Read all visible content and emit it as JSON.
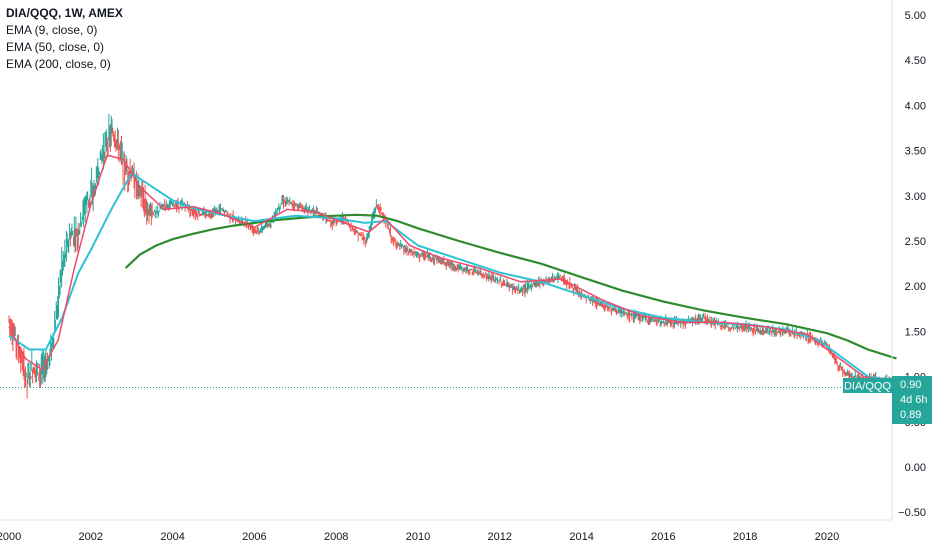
{
  "legend": {
    "title": "DIA/QQQ, 1W, AMEX",
    "ema_short": "EMA (9, close, 0)",
    "ema_mid": "EMA (50, close, 0)",
    "ema_long": "EMA (200, close, 0)"
  },
  "price_flag": {
    "symbol": "DIA/QQQ",
    "last": "0.90",
    "countdown": "4d 6h",
    "low": "0.89"
  },
  "colors": {
    "up": "#26a69a",
    "down": "#ef5350",
    "ema_short": "#ef4a6a",
    "ema_mid": "#2cc3d4",
    "ema_long": "#2e8b2e",
    "flag_bg": "#26a69a",
    "dotted_line": "#26a69a"
  },
  "chart_data": {
    "type": "line",
    "title": "DIA/QQQ, 1W, AMEX",
    "xlabel": "",
    "ylabel": "",
    "x_ticks": [
      "2000",
      "2002",
      "2004",
      "2006",
      "2008",
      "2010",
      "2012",
      "2014",
      "2016",
      "2018",
      "2020"
    ],
    "y_ticks": [
      "5.00",
      "4.50",
      "4.00",
      "3.50",
      "3.00",
      "2.50",
      "2.00",
      "1.50",
      "1.00",
      "0.50",
      "0.00",
      "−0.50"
    ],
    "ylim": [
      -0.6,
      5.15
    ],
    "xlim": [
      2000.0,
      2021.8
    ],
    "scale": "linear",
    "grid": false,
    "legend_position": "top-left",
    "series": [
      {
        "name": "DIA/QQQ",
        "x": [
          2000.0,
          2000.25,
          2000.45,
          2000.6,
          2000.8,
          2001.0,
          2001.15,
          2001.3,
          2001.5,
          2001.7,
          2001.9,
          2002.1,
          2002.25,
          2002.4,
          2002.55,
          2002.7,
          2002.85,
          2003.0,
          2003.2,
          2003.4,
          2003.6,
          2003.8,
          2004.0,
          2004.3,
          2004.6,
          2004.9,
          2005.2,
          2005.5,
          2005.8,
          2006.1,
          2006.4,
          2006.7,
          2007.0,
          2007.3,
          2007.6,
          2007.9,
          2008.2,
          2008.5,
          2008.75,
          2009.0,
          2009.15,
          2009.4,
          2009.7,
          2010.0,
          2010.5,
          2011.0,
          2011.5,
          2012.0,
          2012.5,
          2013.0,
          2013.5,
          2014.0,
          2014.5,
          2015.0,
          2015.5,
          2016.0,
          2016.5,
          2017.0,
          2017.5,
          2018.0,
          2018.5,
          2019.0,
          2019.5,
          2020.0,
          2020.3,
          2020.6,
          2020.9,
          2021.2,
          2021.5,
          2021.7
        ],
        "values": [
          1.65,
          1.3,
          0.95,
          1.1,
          1.05,
          1.2,
          1.6,
          2.2,
          2.55,
          2.6,
          2.95,
          3.05,
          3.4,
          3.6,
          3.7,
          3.55,
          3.3,
          3.25,
          3.05,
          2.85,
          2.8,
          2.9,
          2.9,
          2.9,
          2.8,
          2.8,
          2.85,
          2.75,
          2.7,
          2.6,
          2.7,
          2.95,
          2.9,
          2.85,
          2.8,
          2.7,
          2.75,
          2.6,
          2.5,
          2.9,
          2.8,
          2.5,
          2.4,
          2.35,
          2.3,
          2.2,
          2.15,
          2.05,
          1.95,
          2.05,
          2.1,
          1.9,
          1.8,
          1.7,
          1.65,
          1.6,
          1.6,
          1.65,
          1.55,
          1.55,
          1.5,
          1.5,
          1.45,
          1.35,
          1.1,
          1.0,
          0.98,
          0.97,
          0.95,
          0.9
        ]
      },
      {
        "name": "EMA (9, close, 0)",
        "x": [
          2000.0,
          2000.4,
          2000.8,
          2001.2,
          2001.6,
          2002.0,
          2002.4,
          2002.8,
          2003.2,
          2003.8,
          2004.5,
          2005.2,
          2006.0,
          2006.8,
          2007.5,
          2008.2,
          2008.8,
          2009.2,
          2009.8,
          2010.5,
          2011.5,
          2012.5,
          2013.5,
          2014.5,
          2015.5,
          2016.5,
          2017.5,
          2018.5,
          2019.5,
          2020.3,
          2020.9,
          2021.5
        ],
        "values": [
          1.55,
          1.2,
          1.08,
          1.4,
          2.2,
          2.9,
          3.45,
          3.4,
          3.1,
          2.85,
          2.88,
          2.8,
          2.65,
          2.85,
          2.82,
          2.7,
          2.6,
          2.75,
          2.45,
          2.32,
          2.2,
          2.05,
          2.08,
          1.85,
          1.67,
          1.6,
          1.6,
          1.55,
          1.47,
          1.2,
          1.0,
          0.95
        ]
      },
      {
        "name": "EMA (50, close, 0)",
        "x": [
          2000.0,
          2000.5,
          2000.9,
          2001.3,
          2001.7,
          2002.0,
          2002.5,
          2003.0,
          2003.5,
          2004.0,
          2004.6,
          2005.3,
          2006.0,
          2007.0,
          2008.0,
          2008.7,
          2009.2,
          2010.0,
          2011.0,
          2012.0,
          2013.0,
          2014.0,
          2015.0,
          2016.0,
          2017.0,
          2018.0,
          2019.0,
          2019.8,
          2020.4,
          2021.0,
          2021.6
        ],
        "values": [
          1.45,
          1.3,
          1.3,
          1.65,
          2.15,
          2.4,
          2.85,
          3.25,
          3.1,
          2.95,
          2.85,
          2.78,
          2.72,
          2.78,
          2.75,
          2.7,
          2.72,
          2.45,
          2.3,
          2.15,
          2.05,
          1.9,
          1.75,
          1.65,
          1.6,
          1.58,
          1.52,
          1.4,
          1.2,
          1.0,
          0.96
        ]
      },
      {
        "name": "EMA (200, close, 0)",
        "x": [
          2002.85,
          2003.2,
          2003.6,
          2004.0,
          2004.5,
          2005.0,
          2005.5,
          2006.0,
          2006.5,
          2007.0,
          2007.5,
          2008.0,
          2008.5,
          2009.0,
          2009.5,
          2010.0,
          2011.0,
          2012.0,
          2013.0,
          2014.0,
          2015.0,
          2016.0,
          2017.0,
          2018.0,
          2019.0,
          2020.0,
          2020.5,
          2021.0,
          2021.7
        ],
        "values": [
          2.2,
          2.35,
          2.45,
          2.52,
          2.58,
          2.63,
          2.67,
          2.7,
          2.73,
          2.75,
          2.77,
          2.78,
          2.79,
          2.78,
          2.72,
          2.64,
          2.5,
          2.37,
          2.25,
          2.1,
          1.95,
          1.83,
          1.73,
          1.65,
          1.58,
          1.48,
          1.4,
          1.3,
          1.2
        ]
      }
    ]
  }
}
